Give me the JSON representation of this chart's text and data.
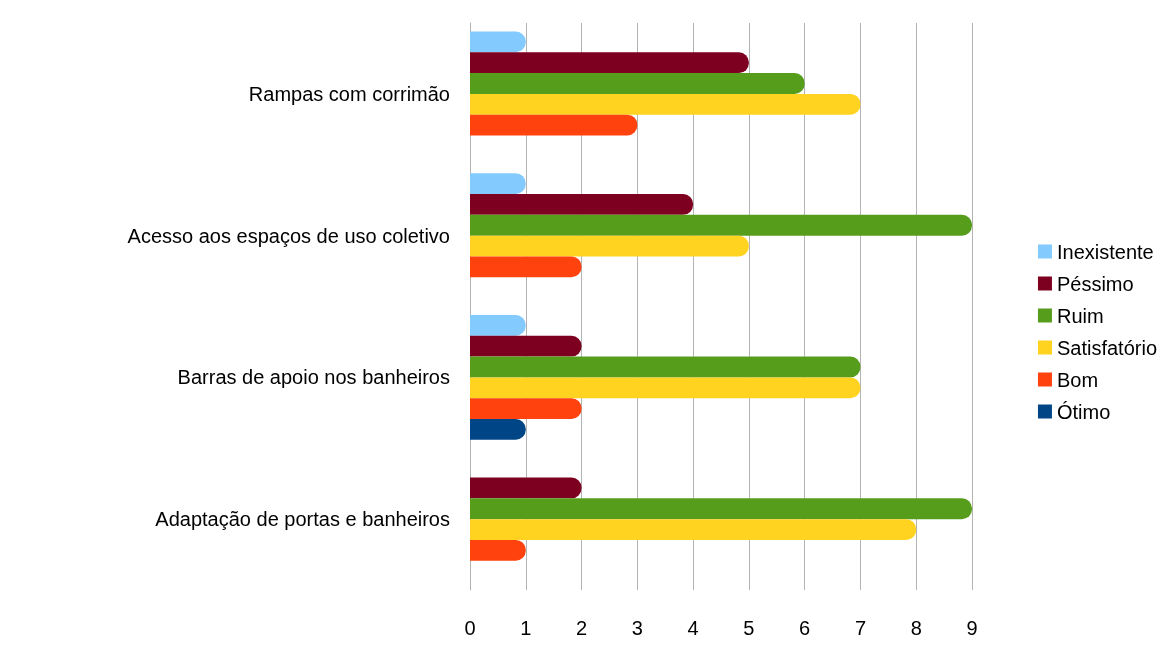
{
  "chart_data": {
    "type": "bar",
    "orientation": "horizontal",
    "categories": [
      "Rampas com corrimão",
      "Acesso aos espaços de uso coletivo",
      "Barras de apoio nos banheiros",
      "Adaptação de portas e banheiros"
    ],
    "series": [
      {
        "name": "Inexistente",
        "color": "#83caff",
        "values": [
          1,
          1,
          1,
          null
        ]
      },
      {
        "name": "Péssimo",
        "color": "#7e0021",
        "values": [
          5,
          4,
          2,
          2
        ]
      },
      {
        "name": "Ruim",
        "color": "#579d1c",
        "values": [
          6,
          9,
          7,
          9
        ]
      },
      {
        "name": "Satisfatório",
        "color": "#ffd320",
        "values": [
          7,
          5,
          7,
          8
        ]
      },
      {
        "name": "Bom",
        "color": "#ff420e",
        "values": [
          3,
          2,
          2,
          1
        ]
      },
      {
        "name": "Ótimo",
        "color": "#004586",
        "values": [
          null,
          null,
          1,
          null
        ]
      }
    ],
    "xlim": [
      0,
      9
    ],
    "xticks": [
      0,
      1,
      2,
      3,
      4,
      5,
      6,
      7,
      8,
      9
    ],
    "grid": "x",
    "legend": "right"
  }
}
